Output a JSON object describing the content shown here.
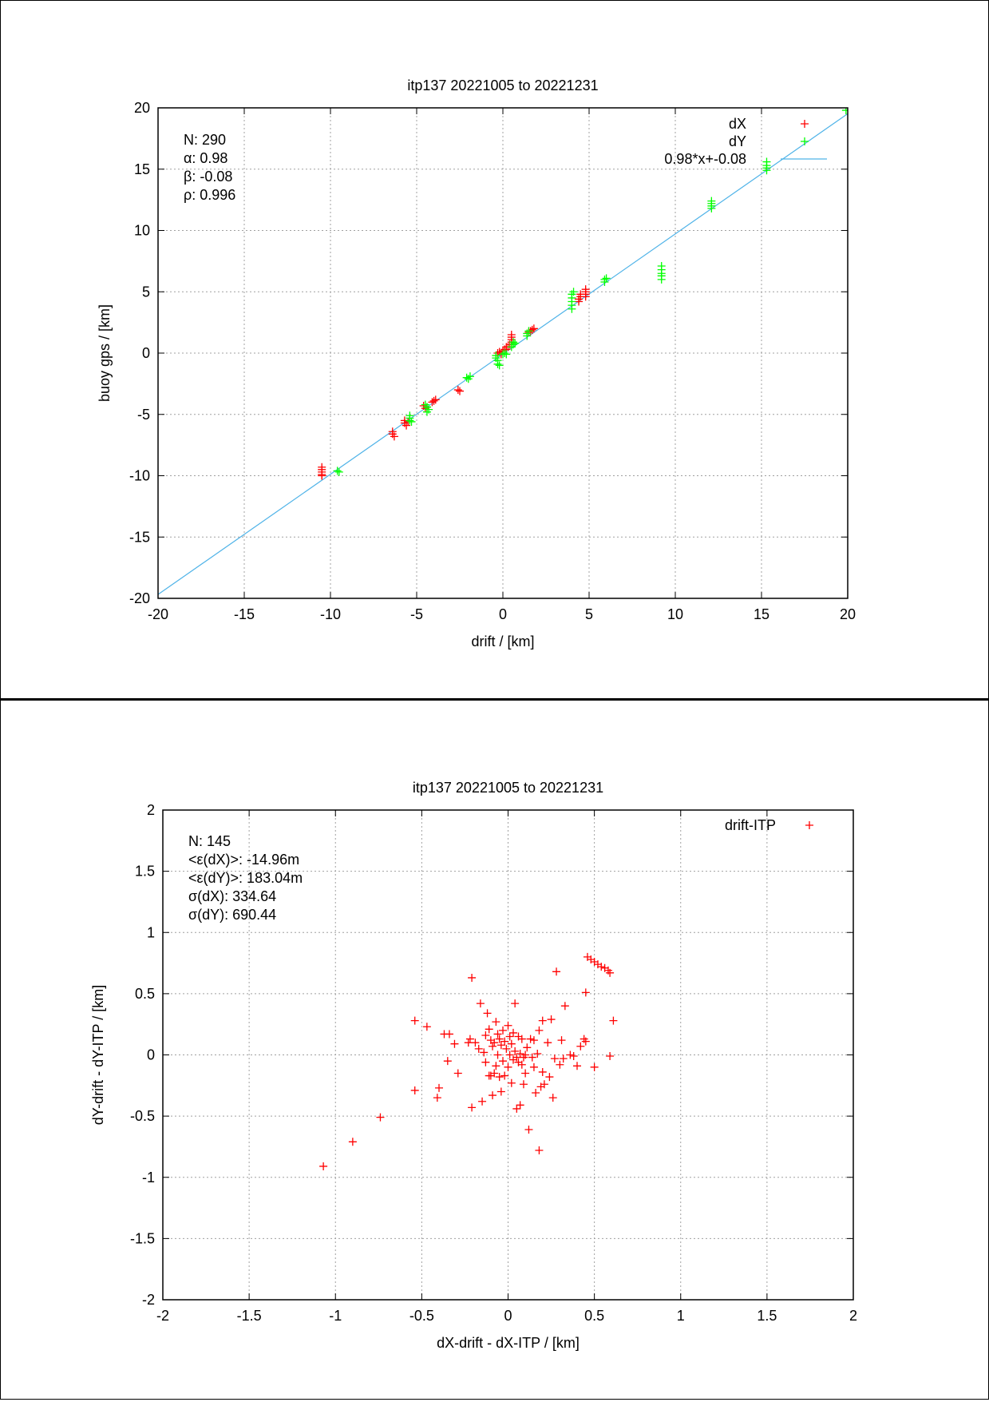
{
  "chart_data": [
    {
      "type": "scatter",
      "title": "itp137 20221005 to 20221231",
      "xlabel": "drift / [km]",
      "ylabel": "buoy gps / [km]",
      "xlim": [
        -20,
        20
      ],
      "ylim": [
        -20,
        20
      ],
      "xticks": [
        -20,
        -15,
        -10,
        -5,
        0,
        5,
        10,
        15,
        20
      ],
      "yticks": [
        -20,
        -15,
        -10,
        -5,
        0,
        5,
        10,
        15,
        20
      ],
      "grid": true,
      "legend_position": "top-right",
      "stats": [
        "N: 290",
        "α: 0.98",
        "β: -0.08",
        "ρ: 0.996"
      ],
      "fit_line": {
        "label": "0.98*x+-0.08",
        "slope": 0.98,
        "intercept": -0.08,
        "color": "#4fb3e8"
      },
      "series": [
        {
          "name": "dX",
          "color": "#ff0000",
          "points": [
            [
              -10.5,
              -9.3
            ],
            [
              -10.5,
              -9.5
            ],
            [
              -10.5,
              -9.7
            ],
            [
              -10.5,
              -9.9
            ],
            [
              -10.5,
              -10.0
            ],
            [
              -6.4,
              -6.4
            ],
            [
              -6.4,
              -6.6
            ],
            [
              -6.3,
              -6.8
            ],
            [
              -5.7,
              -5.5
            ],
            [
              -5.7,
              -5.7
            ],
            [
              -5.6,
              -5.9
            ],
            [
              -5.5,
              -5.6
            ],
            [
              -4.6,
              -4.3
            ],
            [
              -4.5,
              -4.5
            ],
            [
              -4.4,
              -4.4
            ],
            [
              -4.0,
              -3.9
            ],
            [
              -3.9,
              -3.8
            ],
            [
              -4.1,
              -4.0
            ],
            [
              -2.6,
              -3.0
            ],
            [
              -2.5,
              -3.1
            ],
            [
              -0.3,
              0.0
            ],
            [
              -0.2,
              0.1
            ],
            [
              -0.1,
              -0.1
            ],
            [
              0.0,
              0.2
            ],
            [
              0.1,
              0.3
            ],
            [
              0.2,
              0.3
            ],
            [
              0.2,
              0.5
            ],
            [
              0.3,
              0.5
            ],
            [
              0.4,
              0.7
            ],
            [
              0.5,
              0.9
            ],
            [
              0.5,
              1.1
            ],
            [
              0.5,
              1.3
            ],
            [
              0.5,
              1.5
            ],
            [
              1.5,
              1.7
            ],
            [
              1.6,
              1.8
            ],
            [
              1.7,
              1.9
            ],
            [
              1.8,
              2.0
            ],
            [
              4.4,
              4.2
            ],
            [
              4.4,
              4.4
            ],
            [
              4.5,
              4.6
            ],
            [
              4.5,
              4.8
            ],
            [
              4.8,
              4.6
            ],
            [
              4.8,
              4.8
            ],
            [
              4.8,
              5.0
            ],
            [
              4.8,
              5.2
            ]
          ]
        },
        {
          "name": "dY",
          "color": "#00ff00",
          "points": [
            [
              -9.6,
              -9.6
            ],
            [
              -9.5,
              -9.7
            ],
            [
              -5.4,
              -5.1
            ],
            [
              -5.4,
              -5.3
            ],
            [
              -5.4,
              -5.5
            ],
            [
              -5.3,
              -5.6
            ],
            [
              -4.5,
              -4.2
            ],
            [
              -4.4,
              -4.4
            ],
            [
              -4.3,
              -4.6
            ],
            [
              -4.4,
              -4.8
            ],
            [
              -2.1,
              -2.0
            ],
            [
              -2.0,
              -2.1
            ],
            [
              -1.9,
              -1.9
            ],
            [
              -0.4,
              -0.2
            ],
            [
              -0.4,
              -0.4
            ],
            [
              -0.3,
              -0.6
            ],
            [
              -0.3,
              -0.9
            ],
            [
              -0.2,
              -1.0
            ],
            [
              0.0,
              -0.1
            ],
            [
              0.1,
              0.0
            ],
            [
              0.2,
              -0.1
            ],
            [
              0.5,
              0.5
            ],
            [
              0.6,
              0.7
            ],
            [
              0.6,
              0.9
            ],
            [
              0.7,
              0.8
            ],
            [
              1.4,
              1.4
            ],
            [
              1.4,
              1.6
            ],
            [
              1.5,
              1.8
            ],
            [
              4.0,
              3.6
            ],
            [
              4.0,
              3.9
            ],
            [
              4.0,
              4.2
            ],
            [
              4.0,
              4.5
            ],
            [
              4.0,
              4.8
            ],
            [
              4.1,
              5.0
            ],
            [
              5.9,
              5.8
            ],
            [
              5.9,
              6.0
            ],
            [
              6.0,
              6.1
            ],
            [
              9.2,
              6.0
            ],
            [
              9.2,
              6.3
            ],
            [
              9.2,
              6.5
            ],
            [
              9.2,
              6.8
            ],
            [
              9.2,
              7.1
            ],
            [
              12.1,
              11.8
            ],
            [
              12.1,
              12.0
            ],
            [
              12.1,
              12.2
            ],
            [
              12.1,
              12.4
            ],
            [
              15.3,
              14.9
            ],
            [
              15.3,
              15.1
            ],
            [
              15.3,
              15.3
            ],
            [
              15.3,
              15.6
            ],
            [
              19.9,
              19.8
            ]
          ]
        }
      ]
    },
    {
      "type": "scatter",
      "title": "itp137 20221005 to 20221231",
      "xlabel": "dX-drift - dX-ITP / [km]",
      "ylabel": "dY-drift - dY-ITP / [km]",
      "xlim": [
        -2,
        2
      ],
      "ylim": [
        -2,
        2
      ],
      "xticks": [
        -2,
        -1.5,
        -1,
        -0.5,
        0,
        0.5,
        1,
        1.5,
        2
      ],
      "yticks": [
        -2,
        -1.5,
        -1,
        -0.5,
        0,
        0.5,
        1,
        1.5,
        2
      ],
      "grid": true,
      "legend_position": "top-right",
      "stats": [
        "N: 145",
        "<ε(dX)>:  -14.96m",
        "<ε(dY)>: 183.04m",
        "σ(dX):  334.64",
        "σ(dY):  690.44"
      ],
      "series": [
        {
          "name": "drift-ITP",
          "color": "#ff0000",
          "points": [
            [
              -1.07,
              -0.91
            ],
            [
              -0.9,
              -0.71
            ],
            [
              -0.74,
              -0.51
            ],
            [
              -0.54,
              0.28
            ],
            [
              -0.54,
              -0.29
            ],
            [
              -0.47,
              0.23
            ],
            [
              -0.41,
              -0.35
            ],
            [
              -0.4,
              -0.27
            ],
            [
              -0.37,
              0.17
            ],
            [
              -0.35,
              -0.05
            ],
            [
              -0.34,
              0.17
            ],
            [
              -0.31,
              0.09
            ],
            [
              -0.29,
              -0.15
            ],
            [
              -0.23,
              0.1
            ],
            [
              -0.22,
              0.13
            ],
            [
              -0.21,
              0.63
            ],
            [
              -0.21,
              -0.43
            ],
            [
              -0.19,
              0.1
            ],
            [
              -0.17,
              0.05
            ],
            [
              -0.16,
              0.42
            ],
            [
              -0.15,
              -0.38
            ],
            [
              -0.14,
              0.02
            ],
            [
              -0.13,
              0.16
            ],
            [
              -0.13,
              -0.06
            ],
            [
              -0.12,
              0.34
            ],
            [
              -0.11,
              -0.17
            ],
            [
              -0.11,
              0.21
            ],
            [
              -0.1,
              0.12
            ],
            [
              -0.1,
              -0.17
            ],
            [
              -0.09,
              0.07
            ],
            [
              -0.09,
              -0.33
            ],
            [
              -0.08,
              -0.15
            ],
            [
              -0.08,
              0.1
            ],
            [
              -0.07,
              0.27
            ],
            [
              -0.07,
              -0.09
            ],
            [
              -0.06,
              0.17
            ],
            [
              -0.06,
              0.0
            ],
            [
              -0.05,
              -0.18
            ],
            [
              -0.05,
              0.13
            ],
            [
              -0.04,
              0.08
            ],
            [
              -0.04,
              -0.3
            ],
            [
              -0.03,
              0.2
            ],
            [
              -0.03,
              -0.05
            ],
            [
              -0.02,
              0.11
            ],
            [
              -0.02,
              -0.17
            ],
            [
              -0.01,
              0.05
            ],
            [
              0.0,
              0.24
            ],
            [
              0.0,
              -0.1
            ],
            [
              0.01,
              0.15
            ],
            [
              0.01,
              0.0
            ],
            [
              0.02,
              0.09
            ],
            [
              0.02,
              -0.23
            ],
            [
              0.03,
              -0.04
            ],
            [
              0.03,
              0.18
            ],
            [
              0.04,
              0.42
            ],
            [
              0.04,
              0.03
            ],
            [
              0.05,
              -0.02
            ],
            [
              0.05,
              -0.44
            ],
            [
              0.06,
              0.15
            ],
            [
              0.06,
              -0.06
            ],
            [
              0.07,
              0.01
            ],
            [
              0.07,
              -0.41
            ],
            [
              0.08,
              -0.08
            ],
            [
              0.08,
              0.13
            ],
            [
              0.09,
              -0.02
            ],
            [
              0.09,
              -0.24
            ],
            [
              0.1,
              0.0
            ],
            [
              0.1,
              -0.15
            ],
            [
              0.11,
              0.06
            ],
            [
              0.12,
              -0.61
            ],
            [
              0.13,
              0.13
            ],
            [
              0.14,
              -0.02
            ],
            [
              0.15,
              0.12
            ],
            [
              0.15,
              -0.1
            ],
            [
              0.16,
              -0.31
            ],
            [
              0.17,
              0.01
            ],
            [
              0.18,
              -0.78
            ],
            [
              0.18,
              0.2
            ],
            [
              0.19,
              -0.26
            ],
            [
              0.2,
              0.28
            ],
            [
              0.2,
              -0.14
            ],
            [
              0.21,
              -0.24
            ],
            [
              0.23,
              0.1
            ],
            [
              0.24,
              -0.18
            ],
            [
              0.25,
              0.29
            ],
            [
              0.26,
              -0.35
            ],
            [
              0.27,
              -0.03
            ],
            [
              0.28,
              0.68
            ],
            [
              0.3,
              -0.08
            ],
            [
              0.31,
              0.12
            ],
            [
              0.32,
              -0.03
            ],
            [
              0.33,
              0.4
            ],
            [
              0.36,
              0.0
            ],
            [
              0.38,
              -0.01
            ],
            [
              0.4,
              -0.09
            ],
            [
              0.42,
              0.07
            ],
            [
              0.44,
              0.13
            ],
            [
              0.45,
              0.51
            ],
            [
              0.45,
              0.11
            ],
            [
              0.46,
              0.8
            ],
            [
              0.48,
              0.78
            ],
            [
              0.5,
              -0.1
            ],
            [
              0.5,
              0.76
            ],
            [
              0.52,
              0.74
            ],
            [
              0.54,
              0.72
            ],
            [
              0.56,
              0.71
            ],
            [
              0.58,
              0.69
            ],
            [
              0.59,
              0.67
            ],
            [
              0.59,
              -0.01
            ],
            [
              0.61,
              0.28
            ]
          ]
        }
      ]
    }
  ]
}
